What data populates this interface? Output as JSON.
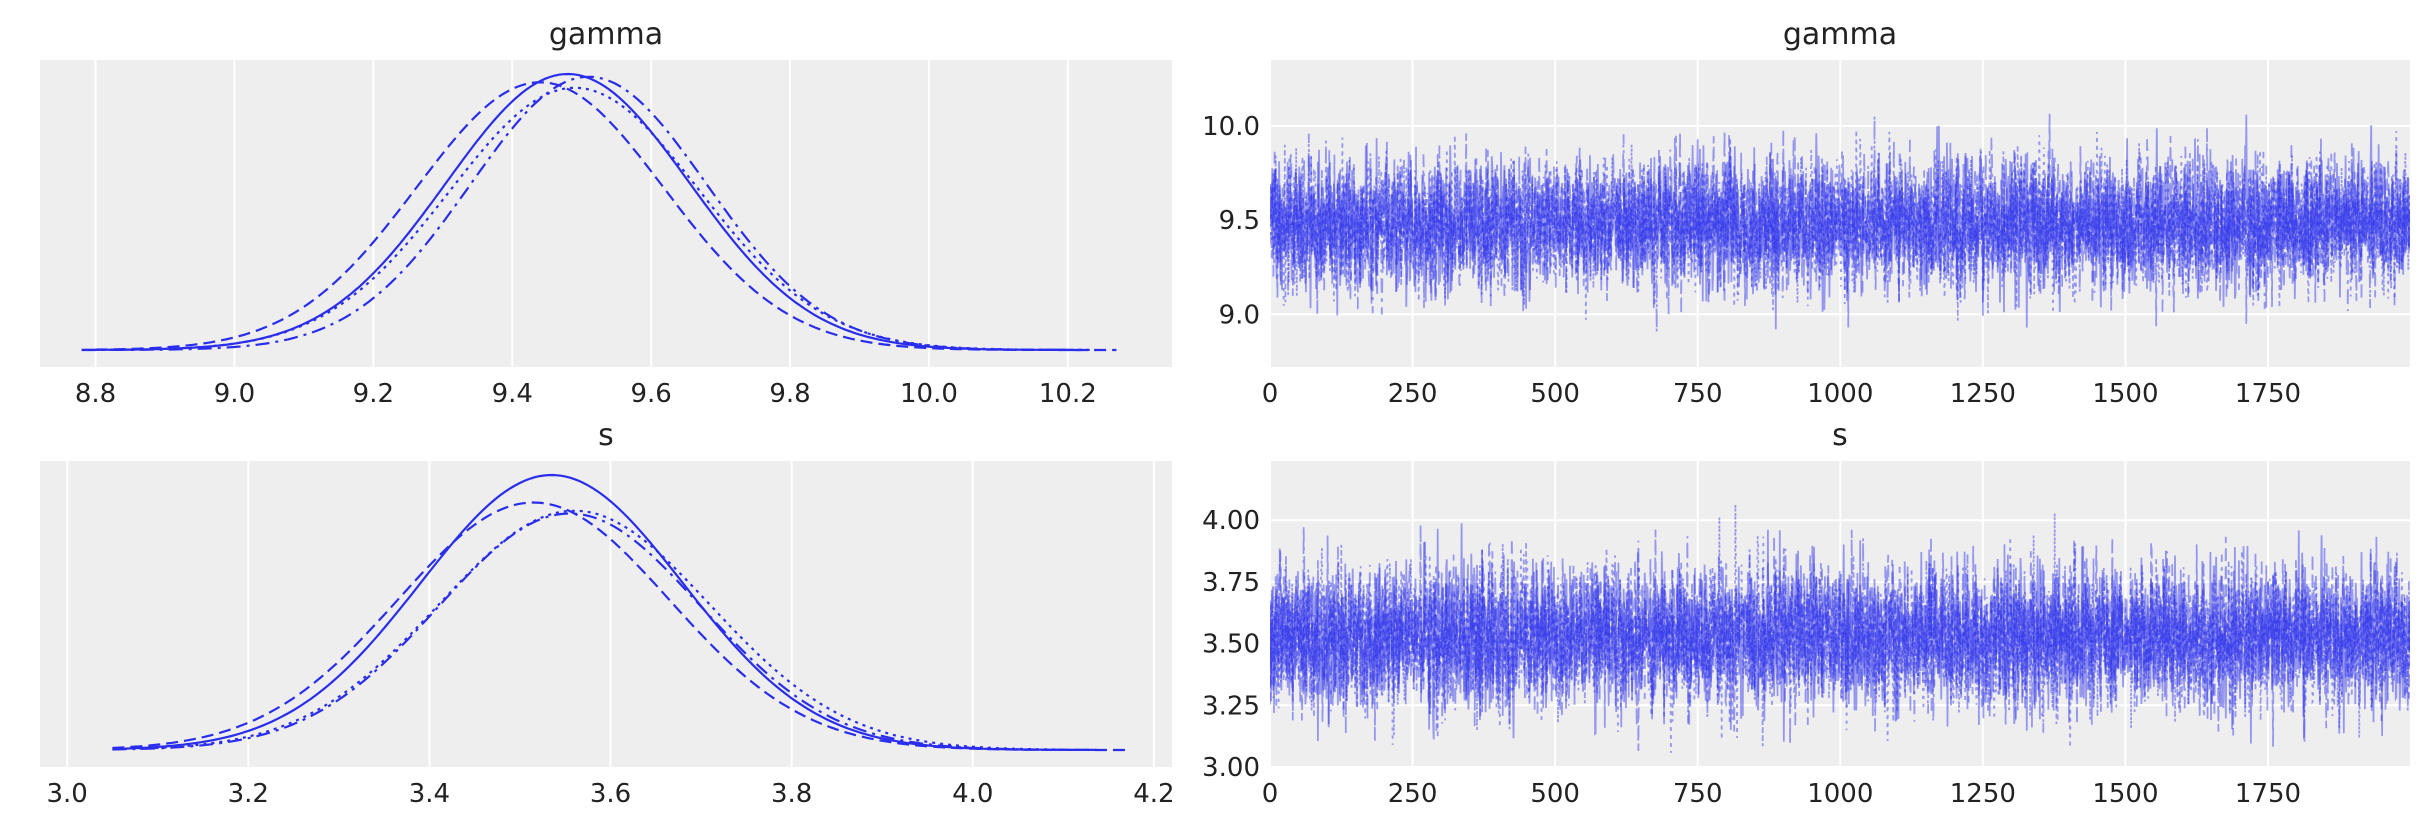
{
  "chart_data": [
    {
      "type": "line",
      "subtype": "kde",
      "title": "gamma",
      "xlim": [
        8.72,
        10.35
      ],
      "xticks": [
        8.8,
        9.0,
        9.2,
        9.4,
        9.6,
        9.8,
        10.0,
        10.2
      ],
      "xtick_labels": [
        "8.8",
        "9.0",
        "9.2",
        "9.4",
        "9.6",
        "9.8",
        "10.0",
        "10.2"
      ],
      "yticks": [],
      "grid": true,
      "color": "#2a2eec",
      "series": [
        {
          "linestyle": "solid",
          "mean": 9.48,
          "sd": 0.175,
          "x_range": [
            8.78,
            10.22
          ],
          "peak": 1.0
        },
        {
          "linestyle": "dashed",
          "mean": 9.44,
          "sd": 0.178,
          "x_range": [
            8.8,
            10.27
          ],
          "peak": 0.97
        },
        {
          "linestyle": "dotted",
          "mean": 9.49,
          "sd": 0.18,
          "x_range": [
            8.82,
            10.24
          ],
          "peak": 0.95
        },
        {
          "linestyle": "dashdot",
          "mean": 9.51,
          "sd": 0.17,
          "x_range": [
            8.78,
            10.2
          ],
          "peak": 0.99
        }
      ]
    },
    {
      "type": "line",
      "subtype": "trace",
      "title": "gamma",
      "xlim": [
        0,
        1999
      ],
      "ylim": [
        8.72,
        10.35
      ],
      "xticks": [
        0,
        250,
        500,
        750,
        1000,
        1250,
        1500,
        1750
      ],
      "xtick_labels": [
        "0",
        "250",
        "500",
        "750",
        "1000",
        "1250",
        "1500",
        "1750"
      ],
      "yticks": [
        9.0,
        9.5,
        10.0
      ],
      "ytick_labels": [
        "9.0",
        "9.5",
        "10.0"
      ],
      "grid": true,
      "color": "#2a2eec",
      "n_draws": 2000,
      "series": [
        {
          "linestyle": "solid",
          "mean": 9.48,
          "sd": 0.18
        },
        {
          "linestyle": "dashed",
          "mean": 9.48,
          "sd": 0.18
        },
        {
          "linestyle": "dotted",
          "mean": 9.48,
          "sd": 0.18
        },
        {
          "linestyle": "dashdot",
          "mean": 9.48,
          "sd": 0.18
        }
      ]
    },
    {
      "type": "line",
      "subtype": "kde",
      "title": "s",
      "xlim": [
        2.97,
        4.22
      ],
      "xticks": [
        3.0,
        3.2,
        3.4,
        3.6,
        3.8,
        4.0,
        4.2
      ],
      "xtick_labels": [
        "3.0",
        "3.2",
        "3.4",
        "3.6",
        "3.8",
        "4.0",
        "4.2"
      ],
      "yticks": [],
      "grid": true,
      "color": "#2a2eec",
      "series": [
        {
          "linestyle": "solid",
          "mean": 3.535,
          "sd": 0.145,
          "x_range": [
            3.05,
            4.12
          ],
          "peak": 1.0
        },
        {
          "linestyle": "dashed",
          "mean": 3.515,
          "sd": 0.15,
          "x_range": [
            3.05,
            4.17
          ],
          "peak": 0.9
        },
        {
          "linestyle": "dotted",
          "mean": 3.56,
          "sd": 0.15,
          "x_range": [
            3.08,
            4.1
          ],
          "peak": 0.87
        },
        {
          "linestyle": "dashdot",
          "mean": 3.555,
          "sd": 0.145,
          "x_range": [
            3.05,
            4.14
          ],
          "peak": 0.86
        }
      ]
    },
    {
      "type": "line",
      "subtype": "trace",
      "title": "s",
      "xlim": [
        0,
        1999
      ],
      "ylim": [
        3.0,
        4.24
      ],
      "xticks": [
        0,
        250,
        500,
        750,
        1000,
        1250,
        1500,
        1750
      ],
      "xtick_labels": [
        "0",
        "250",
        "500",
        "750",
        "1000",
        "1250",
        "1500",
        "1750"
      ],
      "yticks": [
        3.0,
        3.25,
        3.5,
        3.75,
        4.0
      ],
      "ytick_labels": [
        "3.00",
        "3.25",
        "3.50",
        "3.75",
        "4.00"
      ],
      "grid": true,
      "color": "#2a2eec",
      "n_draws": 2000,
      "series": [
        {
          "linestyle": "solid",
          "mean": 3.53,
          "sd": 0.15
        },
        {
          "linestyle": "dashed",
          "mean": 3.53,
          "sd": 0.15
        },
        {
          "linestyle": "dotted",
          "mean": 3.53,
          "sd": 0.15
        },
        {
          "linestyle": "dashdot",
          "mean": 3.53,
          "sd": 0.15
        }
      ]
    }
  ]
}
